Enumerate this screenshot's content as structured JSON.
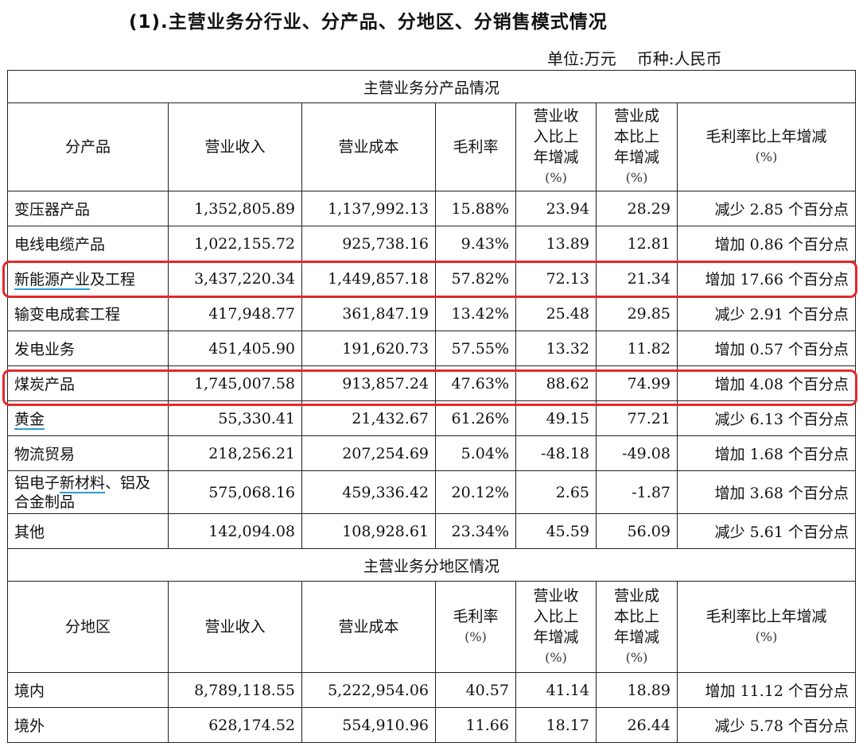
{
  "title": "(1).主营业务分行业、分产品、分地区、分销售模式情况",
  "unit": {
    "unit_label": "单位:万元",
    "currency_label": "币种:人民币"
  },
  "product_section": {
    "title": "主营业务分产品情况",
    "headers": {
      "name": "分产品",
      "revenue": "营业收入",
      "cost": "营业成本",
      "margin": "毛利率",
      "rev_change": [
        "营业收",
        "入比上",
        "年增减",
        "(%)"
      ],
      "cost_change": [
        "营业成",
        "本比上",
        "年增减",
        "(%)"
      ],
      "margin_change": [
        "毛利率比上年增减",
        "(%)"
      ]
    },
    "rows": [
      {
        "name": "变压器产品",
        "revenue": "1,352,805.89",
        "cost": "1,137,992.13",
        "margin": "15.88%",
        "rev_change": "23.94",
        "cost_change": "28.29",
        "margin_change": "减少 2.85 个百分点"
      },
      {
        "name": "电线电缆产品",
        "revenue": "1,022,155.72",
        "cost": "925,738.16",
        "margin": "9.43%",
        "rev_change": "13.89",
        "cost_change": "12.81",
        "margin_change": "增加 0.86 个百分点"
      },
      {
        "name_parts": [
          "新能源产业",
          "及工程"
        ],
        "revenue": "3,437,220.34",
        "cost": "1,449,857.18",
        "margin": "57.82%",
        "rev_change": "72.13",
        "cost_change": "21.34",
        "margin_change": "增加 17.66 个百分点"
      },
      {
        "name": "输变电成套工程",
        "revenue": "417,948.77",
        "cost": "361,847.19",
        "margin": "13.42%",
        "rev_change": "25.48",
        "cost_change": "29.85",
        "margin_change": "减少 2.91 个百分点"
      },
      {
        "name": "发电业务",
        "revenue": "451,405.90",
        "cost": "191,620.73",
        "margin": "57.55%",
        "rev_change": "13.32",
        "cost_change": "11.82",
        "margin_change": "增加 0.57 个百分点"
      },
      {
        "name": "煤炭产品",
        "revenue": "1,745,007.58",
        "cost": "913,857.24",
        "margin": "47.63%",
        "rev_change": "88.62",
        "cost_change": "74.99",
        "margin_change": "增加 4.08 个百分点"
      },
      {
        "name": "黄金",
        "revenue": "55,330.41",
        "cost": "21,432.67",
        "margin": "61.26%",
        "rev_change": "49.15",
        "cost_change": "77.21",
        "margin_change": "减少 6.13 个百分点"
      },
      {
        "name": "物流贸易",
        "revenue": "218,256.21",
        "cost": "207,254.69",
        "margin": "5.04%",
        "rev_change": "-48.18",
        "cost_change": "-49.08",
        "margin_change": "增加 1.68 个百分点"
      },
      {
        "name_parts": [
          "铝电子",
          "新材料",
          "、铝及合金制品"
        ],
        "revenue": "575,068.16",
        "cost": "459,336.42",
        "margin": "20.12%",
        "rev_change": "2.65",
        "cost_change": "-1.87",
        "margin_change": "增加 3.68 个百分点"
      },
      {
        "name": "其他",
        "revenue": "142,094.08",
        "cost": "108,928.61",
        "margin": "23.34%",
        "rev_change": "45.59",
        "cost_change": "56.09",
        "margin_change": "减少 5.61 个百分点"
      }
    ]
  },
  "region_section": {
    "title": "主营业务分地区情况",
    "headers": {
      "name": "分地区",
      "revenue": "营业收入",
      "cost": "营业成本",
      "margin": [
        "毛利率",
        "(%)"
      ],
      "rev_change": [
        "营业收",
        "入比上",
        "年增减",
        "(%)"
      ],
      "cost_change": [
        "营业成",
        "本比上",
        "年增减",
        "(%)"
      ],
      "margin_change": [
        "毛利率比上年增减",
        "(%)"
      ]
    },
    "rows": [
      {
        "name": "境内",
        "revenue": "8,789,118.55",
        "cost": "5,222,954.06",
        "margin": "40.57",
        "rev_change": "41.14",
        "cost_change": "18.89",
        "margin_change": "增加 11.12 个百分点"
      },
      {
        "name": "境外",
        "revenue": "628,174.52",
        "cost": "554,910.96",
        "margin": "11.66",
        "rev_change": "18.17",
        "cost_change": "26.44",
        "margin_change": "减少 5.78 个百分点"
      }
    ]
  },
  "highlight_color": "#e8262a",
  "underline_color": "#2a9bd0"
}
